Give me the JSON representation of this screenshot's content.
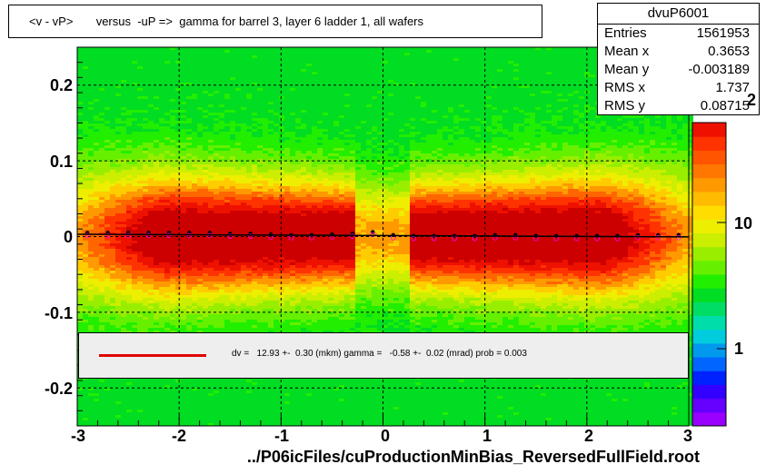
{
  "title": "<v - vP>       versus  -uP =>  gamma for barrel 3, layer 6 ladder 1, all wafers",
  "stats": {
    "name": "dvuP6001",
    "rows": [
      {
        "label": "Entries",
        "value": "1561953"
      },
      {
        "label": "Mean x",
        "value": "0.3653"
      },
      {
        "label": "Mean y",
        "value": "-0.003189"
      },
      {
        "label": "RMS x",
        "value": "1.737"
      },
      {
        "label": "RMS y",
        "value": "0.08715"
      }
    ]
  },
  "legend": {
    "line_color": "#e00000",
    "text": "dv =   12.93 +-  0.30 (mkm) gamma =   -0.58 +-  0.02 (mrad) prob = 0.003"
  },
  "xlabel": "../P06icFiles/cuProductionMinBias_ReversedFullField.root",
  "chart_data": {
    "type": "heatmap",
    "title": "<v - vP>       versus  -uP =>  gamma for barrel 3, layer 6 ladder 1, all wafers",
    "xlim": [
      -3,
      3
    ],
    "ylim": [
      -0.25,
      0.25
    ],
    "x_ticks": [
      "-3",
      "-2",
      "-1",
      "0",
      "1",
      "2",
      "3"
    ],
    "y_ticks": [
      "-0.2",
      "-0.1",
      "0",
      "0.1",
      "0.2"
    ],
    "z_scale": "log",
    "z_ticks": [
      "1",
      "10"
    ],
    "z_sup": "2",
    "grid": true,
    "profile_points": {
      "x": [
        -2.9,
        -2.7,
        -2.5,
        -2.3,
        -2.1,
        -1.9,
        -1.7,
        -1.5,
        -1.3,
        -1.1,
        -0.9,
        -0.7,
        -0.5,
        -0.3,
        -0.1,
        0.1,
        0.3,
        0.5,
        0.7,
        0.9,
        1.1,
        1.3,
        1.5,
        1.7,
        1.9,
        2.1,
        2.3,
        2.5,
        2.7,
        2.9
      ],
      "y": [
        0.005,
        0.005,
        0.005,
        0.005,
        0.005,
        0.005,
        0.005,
        0.004,
        0.004,
        0.003,
        0.002,
        0.002,
        0.003,
        0.004,
        0.006,
        0.002,
        0.001,
        0.001,
        0.001,
        0.001,
        0.002,
        0.002,
        0.001,
        0.001,
        0.001,
        0.001,
        0.001,
        0.002,
        0.002,
        0.002
      ]
    },
    "fit_line": {
      "slope": -0.00058,
      "intercept": 0.0013
    }
  }
}
